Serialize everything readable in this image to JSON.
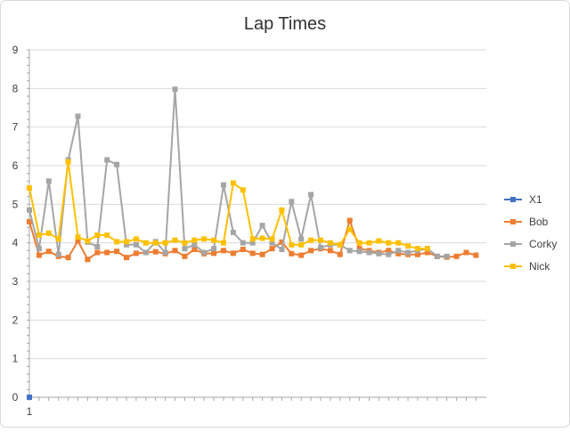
{
  "chart_data": {
    "type": "line",
    "title": "Lap Times",
    "xlabel": "",
    "ylabel": "",
    "ylim": [
      0,
      9
    ],
    "yticks": [
      0,
      1,
      2,
      3,
      4,
      5,
      6,
      7,
      8,
      9
    ],
    "x_tick_labels": [
      "1"
    ],
    "grid": "horizontal",
    "legend_position": "right",
    "series": [
      {
        "name": "X1",
        "color": "#4472C4",
        "values": [
          0
        ]
      },
      {
        "name": "Bob",
        "color": "#ED7D31",
        "values": [
          4.55,
          3.68,
          3.78,
          3.65,
          3.62,
          4.05,
          3.57,
          3.75,
          3.75,
          3.78,
          3.62,
          3.73,
          3.75,
          3.77,
          3.72,
          3.8,
          3.65,
          3.83,
          3.72,
          3.73,
          3.8,
          3.73,
          3.83,
          3.73,
          3.7,
          3.85,
          4.02,
          3.72,
          3.68,
          3.8,
          3.85,
          3.8,
          3.7,
          4.58,
          3.85,
          3.8,
          3.75,
          3.8,
          3.72,
          3.7,
          3.7,
          3.75,
          3.65,
          3.63,
          3.65,
          3.75,
          3.68
        ]
      },
      {
        "name": "Corky",
        "color": "#A5A5A5",
        "values": [
          4.85,
          3.85,
          5.6,
          3.7,
          6.15,
          7.28,
          4.02,
          3.9,
          6.15,
          6.03,
          3.95,
          3.95,
          3.75,
          4.03,
          3.75,
          7.98,
          3.85,
          3.95,
          3.75,
          3.85,
          5.5,
          4.27,
          4.0,
          4.0,
          4.45,
          4.0,
          3.83,
          5.07,
          4.1,
          5.25,
          3.88,
          3.95,
          3.95,
          3.8,
          3.78,
          3.75,
          3.72,
          3.7,
          3.8,
          3.75,
          3.8,
          3.85,
          3.65,
          3.65
        ]
      },
      {
        "name": "Nick",
        "color": "#FFC000",
        "values": [
          5.42,
          4.2,
          4.25,
          4.1,
          6.1,
          4.15,
          4.05,
          4.2,
          4.2,
          4.03,
          4.03,
          4.1,
          4.0,
          4.0,
          4.0,
          4.07,
          4.0,
          4.07,
          4.1,
          4.07,
          4.0,
          5.55,
          5.37,
          4.1,
          4.12,
          4.1,
          4.85,
          3.95,
          3.95,
          4.07,
          4.07,
          4.0,
          3.95,
          4.35,
          4.0,
          4.0,
          4.05,
          4.0,
          4.0,
          3.92,
          3.85,
          3.85
        ]
      }
    ]
  }
}
